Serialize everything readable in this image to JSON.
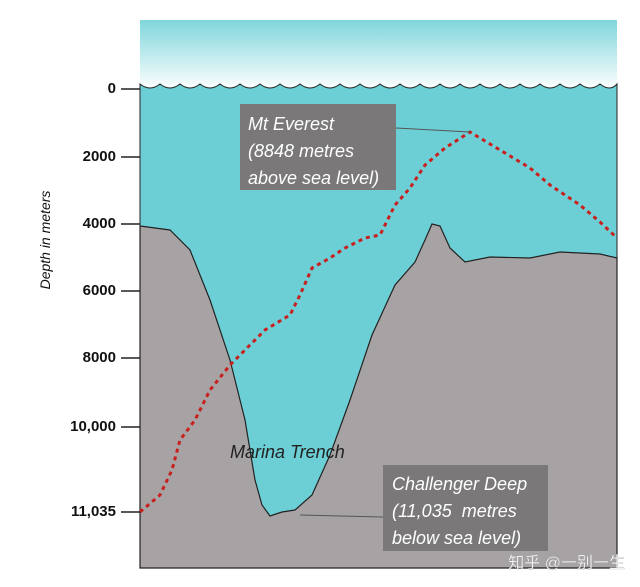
{
  "axis_label": "Depth in meters",
  "ticks": [
    "0",
    "2000",
    "4000",
    "6000",
    "8000",
    "10,000",
    "11,035"
  ],
  "annotations": {
    "everest": [
      "Mt Everest",
      "(8848 metres",
      "above sea level)"
    ],
    "trench": "Marina Trench",
    "challenger": [
      "Challenger Deep",
      "(11,035  metres",
      "below sea level)"
    ]
  },
  "watermark": "知乎 @一别一生"
}
